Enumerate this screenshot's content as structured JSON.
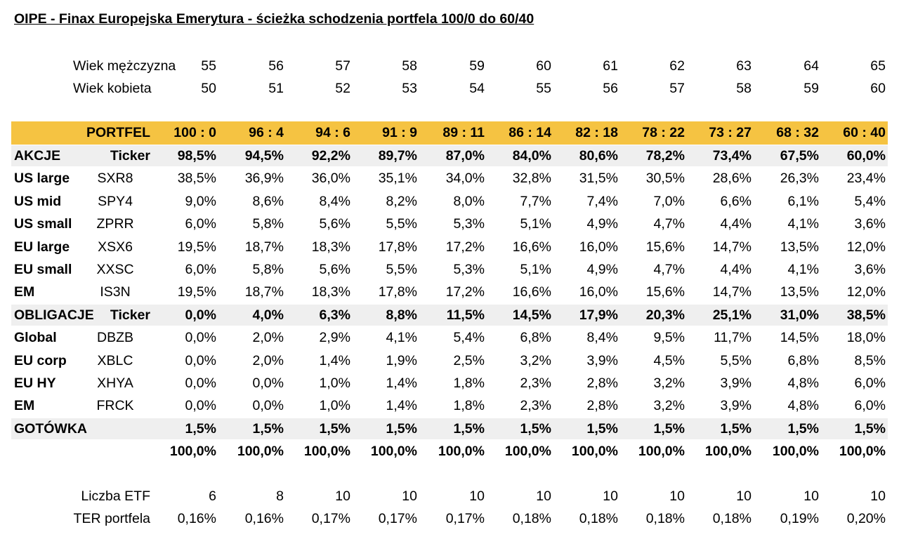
{
  "title": "OIPE - Finax Europejska Emerytura - ścieżka schodzenia portfela 100/0 do 60/40",
  "age_rows": [
    {
      "label": "Wiek mężczyzna",
      "values": [
        "55",
        "56",
        "57",
        "58",
        "59",
        "60",
        "61",
        "62",
        "63",
        "64",
        "65"
      ]
    },
    {
      "label": "Wiek kobieta",
      "values": [
        "50",
        "51",
        "52",
        "53",
        "54",
        "55",
        "56",
        "57",
        "58",
        "59",
        "60"
      ]
    }
  ],
  "portfolio_header": {
    "label": "PORTFEL",
    "values": [
      "100 : 0",
      "96 : 4",
      "94 : 6",
      "91 : 9",
      "89 : 11",
      "86 : 14",
      "82 : 18",
      "78 : 22",
      "73 : 27",
      "68 : 32",
      "60 : 40"
    ],
    "background": "#f5c342"
  },
  "rows": [
    {
      "label": "AKCJE",
      "ticker": "Ticker",
      "values": [
        "98,5%",
        "94,5%",
        "92,2%",
        "89,7%",
        "87,0%",
        "84,0%",
        "80,6%",
        "78,2%",
        "73,4%",
        "67,5%",
        "60,0%"
      ],
      "group": true
    },
    {
      "label": "US large",
      "ticker": "SXR8",
      "values": [
        "38,5%",
        "36,9%",
        "36,0%",
        "35,1%",
        "34,0%",
        "32,8%",
        "31,5%",
        "30,5%",
        "28,6%",
        "26,3%",
        "23,4%"
      ],
      "group": false
    },
    {
      "label": "US mid",
      "ticker": "SPY4",
      "values": [
        "9,0%",
        "8,6%",
        "8,4%",
        "8,2%",
        "8,0%",
        "7,7%",
        "7,4%",
        "7,0%",
        "6,6%",
        "6,1%",
        "5,4%"
      ],
      "group": false
    },
    {
      "label": "US small",
      "ticker": "ZPRR",
      "values": [
        "6,0%",
        "5,8%",
        "5,6%",
        "5,5%",
        "5,3%",
        "5,1%",
        "4,9%",
        "4,7%",
        "4,4%",
        "4,1%",
        "3,6%"
      ],
      "group": false
    },
    {
      "label": "EU large",
      "ticker": "XSX6",
      "values": [
        "19,5%",
        "18,7%",
        "18,3%",
        "17,8%",
        "17,2%",
        "16,6%",
        "16,0%",
        "15,6%",
        "14,7%",
        "13,5%",
        "12,0%"
      ],
      "group": false
    },
    {
      "label": "EU small",
      "ticker": "XXSC",
      "values": [
        "6,0%",
        "5,8%",
        "5,6%",
        "5,5%",
        "5,3%",
        "5,1%",
        "4,9%",
        "4,7%",
        "4,4%",
        "4,1%",
        "3,6%"
      ],
      "group": false
    },
    {
      "label": "EM",
      "ticker": "IS3N",
      "values": [
        "19,5%",
        "18,7%",
        "18,3%",
        "17,8%",
        "17,2%",
        "16,6%",
        "16,0%",
        "15,6%",
        "14,7%",
        "13,5%",
        "12,0%"
      ],
      "group": false
    },
    {
      "label": "OBLIGACJE",
      "ticker": "Ticker",
      "values": [
        "0,0%",
        "4,0%",
        "6,3%",
        "8,8%",
        "11,5%",
        "14,5%",
        "17,9%",
        "20,3%",
        "25,1%",
        "31,0%",
        "38,5%"
      ],
      "group": true
    },
    {
      "label": "Global",
      "ticker": "DBZB",
      "values": [
        "0,0%",
        "2,0%",
        "2,9%",
        "4,1%",
        "5,4%",
        "6,8%",
        "8,4%",
        "9,5%",
        "11,7%",
        "14,5%",
        "18,0%"
      ],
      "group": false
    },
    {
      "label": "EU corp",
      "ticker": "XBLC",
      "values": [
        "0,0%",
        "2,0%",
        "1,4%",
        "1,9%",
        "2,5%",
        "3,2%",
        "3,9%",
        "4,5%",
        "5,5%",
        "6,8%",
        "8,5%"
      ],
      "group": false
    },
    {
      "label": "EU HY",
      "ticker": "XHYA",
      "values": [
        "0,0%",
        "0,0%",
        "1,0%",
        "1,4%",
        "1,8%",
        "2,3%",
        "2,8%",
        "3,2%",
        "3,9%",
        "4,8%",
        "6,0%"
      ],
      "group": false
    },
    {
      "label": "EM",
      "ticker": "FRCK",
      "values": [
        "0,0%",
        "0,0%",
        "1,0%",
        "1,4%",
        "1,8%",
        "2,3%",
        "2,8%",
        "3,2%",
        "3,9%",
        "4,8%",
        "6,0%"
      ],
      "group": false
    },
    {
      "label": "GOTÓWKA",
      "ticker": "",
      "values": [
        "1,5%",
        "1,5%",
        "1,5%",
        "1,5%",
        "1,5%",
        "1,5%",
        "1,5%",
        "1,5%",
        "1,5%",
        "1,5%",
        "1,5%"
      ],
      "group": true
    }
  ],
  "total_row": {
    "values": [
      "100,0%",
      "100,0%",
      "100,0%",
      "100,0%",
      "100,0%",
      "100,0%",
      "100,0%",
      "100,0%",
      "100,0%",
      "100,0%",
      "100,0%"
    ]
  },
  "footer_rows": [
    {
      "label": "Liczba ETF",
      "values": [
        "6",
        "8",
        "10",
        "10",
        "10",
        "10",
        "10",
        "10",
        "10",
        "10",
        "10"
      ]
    },
    {
      "label": "TER portfela",
      "values": [
        "0,16%",
        "0,16%",
        "0,17%",
        "0,17%",
        "0,17%",
        "0,18%",
        "0,18%",
        "0,18%",
        "0,18%",
        "0,19%",
        "0,20%"
      ]
    }
  ],
  "colors": {
    "header_band": "#f5c342",
    "group_band": "#efefef"
  }
}
